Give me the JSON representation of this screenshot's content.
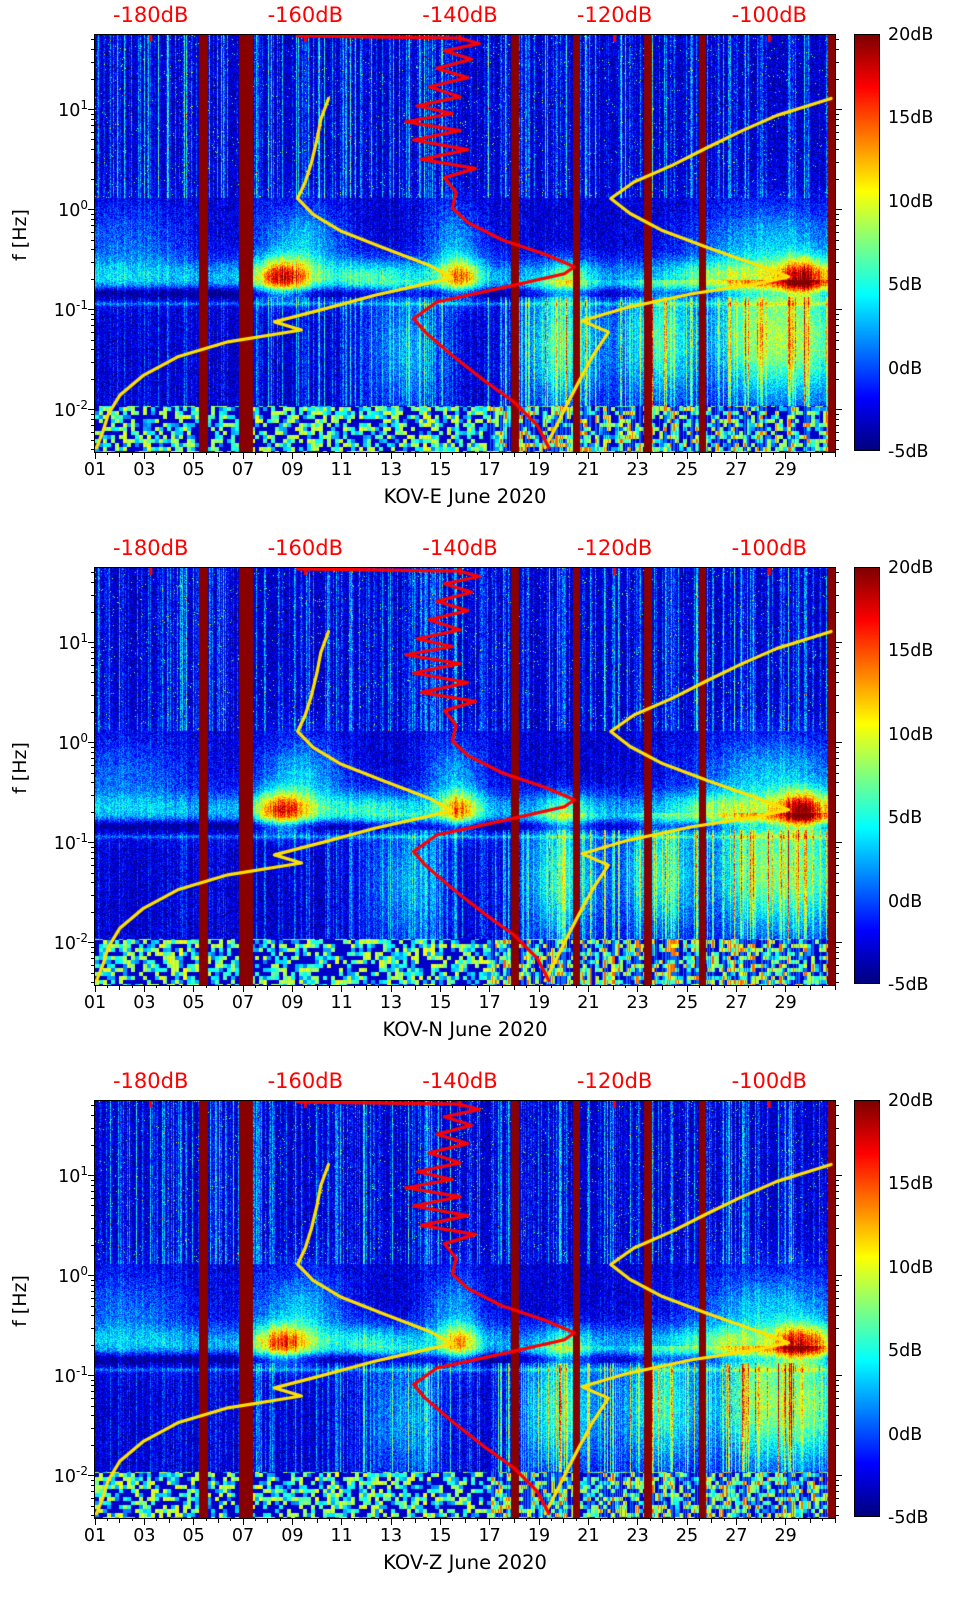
{
  "figure": {
    "background": "#ffffff",
    "text_color": "#000000"
  },
  "chart_data": {
    "type": "heatmap",
    "subtype": "spectrogram",
    "panels": [
      {
        "title": "KOV-E June 2020"
      },
      {
        "title": "KOV-N June 2020"
      },
      {
        "title": "KOV-Z June 2020"
      }
    ],
    "shared": {
      "ylabel": "f [Hz]",
      "y_scale": "log",
      "freq_range_hz": [
        0.0038,
        56
      ],
      "y_major_ticks": [
        {
          "label_base": "10",
          "label_exp": "1",
          "value": 10
        },
        {
          "label_base": "10",
          "label_exp": "0",
          "value": 1
        },
        {
          "label_base": "10",
          "label_exp": "-1",
          "value": 0.1
        },
        {
          "label_base": "10",
          "label_exp": "-2",
          "value": 0.01
        }
      ],
      "x_range_days": [
        1,
        31
      ],
      "x_tick_labels": [
        "01",
        "03",
        "05",
        "07",
        "09",
        "11",
        "13",
        "15",
        "17",
        "19",
        "21",
        "23",
        "25",
        "27",
        "29"
      ],
      "x_tick_days": [
        1,
        3,
        5,
        7,
        9,
        11,
        13,
        15,
        17,
        19,
        21,
        23,
        25,
        27,
        29
      ],
      "top_axis": {
        "color": "#ff0000",
        "tick_labels": [
          "-180dB",
          "-160dB",
          "-140dB",
          "-120dB",
          "-100dB"
        ],
        "tick_values_db": [
          -180,
          -160,
          -140,
          -120,
          -100
        ],
        "range_db": [
          -187.2,
          -91.5
        ]
      },
      "colorbar": {
        "colormap": "jet",
        "range_db": [
          -5,
          20
        ],
        "tick_labels": [
          "20dB",
          "15dB",
          "10dB",
          "5dB",
          "0dB",
          "-5dB"
        ],
        "tick_values_db": [
          20,
          15,
          10,
          5,
          0,
          -5
        ]
      },
      "data_gap_bars_days": [
        [
          5.2,
          5.55
        ],
        [
          6.8,
          7.4
        ],
        [
          17.85,
          18.15
        ],
        [
          20.35,
          20.65
        ],
        [
          23.25,
          23.55
        ],
        [
          25.45,
          25.75
        ],
        [
          30.7,
          31.0
        ]
      ],
      "overlay_curves": {
        "yellow_left": {
          "color": "#ffe100",
          "points_db_hz": [
            [
              -187,
              0.0042
            ],
            [
              -186.2,
              0.006
            ],
            [
              -185.5,
              0.009
            ],
            [
              -184,
              0.014
            ],
            [
              -181,
              0.022
            ],
            [
              -176.5,
              0.034
            ],
            [
              -170,
              0.048
            ],
            [
              -160.5,
              0.063
            ],
            [
              -164,
              0.076
            ],
            [
              -158,
              0.1
            ],
            [
              -151,
              0.14
            ],
            [
              -145.5,
              0.175
            ],
            [
              -141,
              0.21
            ],
            [
              -144,
              0.28
            ],
            [
              -150,
              0.42
            ],
            [
              -155.5,
              0.62
            ],
            [
              -159,
              0.9
            ],
            [
              -161,
              1.3
            ],
            [
              -160,
              1.9
            ],
            [
              -159.2,
              3
            ],
            [
              -158.5,
              5
            ],
            [
              -158,
              8
            ],
            [
              -157,
              13
            ]
          ]
        },
        "yellow_right": {
          "color": "#ffe100",
          "points_db_hz": [
            [
              -129,
              0.0042
            ],
            [
              -127.5,
              0.007
            ],
            [
              -126,
              0.012
            ],
            [
              -124.5,
              0.02
            ],
            [
              -122.8,
              0.035
            ],
            [
              -120.8,
              0.06
            ],
            [
              -124.2,
              0.078
            ],
            [
              -118.5,
              0.105
            ],
            [
              -110,
              0.145
            ],
            [
              -102,
              0.18
            ],
            [
              -97.5,
              0.215
            ],
            [
              -101.5,
              0.28
            ],
            [
              -108,
              0.42
            ],
            [
              -114,
              0.63
            ],
            [
              -118,
              0.92
            ],
            [
              -120.5,
              1.3
            ],
            [
              -117.5,
              1.9
            ],
            [
              -112.5,
              2.8
            ],
            [
              -108,
              4.2
            ],
            [
              -103.5,
              6.2
            ],
            [
              -99,
              8.8
            ],
            [
              -95,
              11
            ],
            [
              -92,
              13
            ]
          ]
        },
        "red": {
          "color": "#ff0000",
          "points_db_hz": [
            [
              -128.5,
              0.0042
            ],
            [
              -130,
              0.007
            ],
            [
              -133,
              0.012
            ],
            [
              -137,
              0.02
            ],
            [
              -141,
              0.035
            ],
            [
              -144.5,
              0.06
            ],
            [
              -146,
              0.082
            ],
            [
              -143,
              0.12
            ],
            [
              -134,
              0.17
            ],
            [
              -126.5,
              0.23
            ],
            [
              -125.2,
              0.27
            ],
            [
              -129,
              0.36
            ],
            [
              -134.5,
              0.5
            ],
            [
              -139,
              0.75
            ],
            [
              -141,
              1.05
            ],
            [
              -140.5,
              1.5
            ],
            [
              -142,
              2.1
            ],
            [
              -138,
              2.6
            ],
            [
              -145,
              3.2
            ],
            [
              -139,
              4
            ],
            [
              -146,
              5
            ],
            [
              -140,
              6.2
            ],
            [
              -147,
              7.6
            ],
            [
              -141,
              9.2
            ],
            [
              -145.5,
              11
            ],
            [
              -140,
              13.5
            ],
            [
              -144,
              17
            ],
            [
              -139,
              21
            ],
            [
              -143,
              26
            ],
            [
              -138.5,
              32
            ],
            [
              -142,
              39
            ],
            [
              -137.5,
              46
            ],
            [
              -140,
              52
            ],
            [
              -161,
              55
            ]
          ]
        }
      },
      "texture": {
        "background_db": -3.2,
        "noise_db": 2.2,
        "stripe_threshold": 0.52,
        "hf_min_hz": 1.3,
        "lowband_max_hz": 0.135,
        "microseism": {
          "center_hz": 0.21,
          "sigma_log10": 0.13,
          "base_db": 5,
          "day_peaks": [
            {
              "day": 8.6,
              "sigma": 0.8,
              "db": 13
            },
            {
              "day": 15.8,
              "sigma": 0.55,
              "db": 10
            },
            {
              "day": 20.1,
              "sigma": 0.7,
              "db": 6
            },
            {
              "day": 29.7,
              "sigma": 0.8,
              "db": 15
            },
            {
              "day": 12.3,
              "sigma": 1.2,
              "db": 4
            },
            {
              "day": 26.5,
              "sigma": 1.5,
              "db": 5
            }
          ]
        },
        "dark_notch": {
          "center_hz": 0.148,
          "sigma_log10": 0.045,
          "db": -4.5
        },
        "mid_fan": {
          "center_hz": 0.45,
          "sigma_log10": 0.28,
          "day_peaks": [
            {
              "day": 2.2,
              "sigma": 1.8,
              "db": 3.5
            },
            {
              "day": 9.3,
              "sigma": 1.2,
              "db": 6
            },
            {
              "day": 15.6,
              "sigma": 0.8,
              "db": 5
            },
            {
              "day": 28.5,
              "sigma": 2.2,
              "db": 6
            }
          ]
        },
        "low_freq": {
          "early_db": 4,
          "mid_db": 8,
          "late_db": 13,
          "mid_start_day": 7.5,
          "late_start_day": 17.2,
          "blobs": [
            {
              "day": 19.9,
              "hz": 0.045,
              "db": 9
            },
            {
              "day": 23.9,
              "hz": 0.05,
              "db": 9
            },
            {
              "day": 27.6,
              "hz": 0.055,
              "db": 10
            },
            {
              "day": 29.9,
              "hz": 0.05,
              "db": 10
            },
            {
              "day": 13.6,
              "hz": 0.04,
              "db": 5
            }
          ]
        },
        "blocky_below_hz": 0.011
      }
    }
  }
}
